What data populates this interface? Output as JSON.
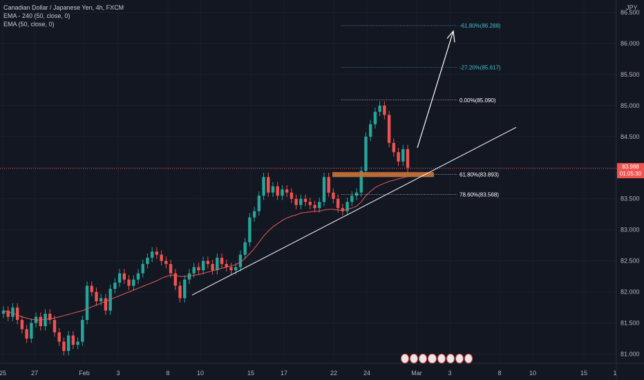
{
  "title": "Canadian Dollar / Japanese Yen, 4h, FXCM",
  "indicators": [
    "EMA - 240 (50, close, 0)",
    "EMA (50, close, 0)"
  ],
  "axis_unit": "JPY",
  "current_price": "83.988",
  "countdown": "01:05:30",
  "colors": {
    "background": "#131722",
    "up": "#26a69a",
    "down": "#ef5350",
    "ema": "#e35b5b",
    "trendline": "#ffffff",
    "fib_neutral": "#ffffff",
    "fib_extension": "#3fc1c9",
    "zone": "#c8733a"
  },
  "chart_data": {
    "type": "candlestick",
    "y_ticks": [
      "81.000",
      "81.500",
      "82.000",
      "82.500",
      "83.000",
      "83.500",
      "84.000",
      "84.500",
      "85.000",
      "85.500",
      "86.000",
      "86.500"
    ],
    "ylim": [
      80.85,
      86.7
    ],
    "x_ticks": [
      "25",
      "27",
      "Feb",
      "3",
      "8",
      "10",
      "15",
      "17",
      "22",
      "24",
      "Mar",
      "3",
      "8",
      "10",
      "15",
      "1"
    ],
    "close_series": [
      81.7,
      81.6,
      81.75,
      81.55,
      81.4,
      81.25,
      81.5,
      81.6,
      81.45,
      81.65,
      81.55,
      81.35,
      81.2,
      81.05,
      81.3,
      81.15,
      81.2,
      81.55,
      82.1,
      82.0,
      81.85,
      81.9,
      81.7,
      82.05,
      82.15,
      82.3,
      82.2,
      82.1,
      82.2,
      82.3,
      82.45,
      82.55,
      82.65,
      82.6,
      82.5,
      82.45,
      82.3,
      82.1,
      81.9,
      82.2,
      82.3,
      82.4,
      82.35,
      82.5,
      82.45,
      82.35,
      82.55,
      82.45,
      82.4,
      82.35,
      82.4,
      82.6,
      82.8,
      83.2,
      83.3,
      83.55,
      83.85,
      83.6,
      83.7,
      83.55,
      83.65,
      83.6,
      83.5,
      83.4,
      83.5,
      83.45,
      83.4,
      83.35,
      83.45,
      83.85,
      83.6,
      83.5,
      83.35,
      83.3,
      83.45,
      83.55,
      83.6,
      83.95,
      84.5,
      84.7,
      84.9,
      85.0,
      84.85,
      84.4,
      84.25,
      84.1,
      84.3,
      84.0
    ],
    "ema_series": [
      81.7,
      81.68,
      81.66,
      81.63,
      81.6,
      81.58,
      81.56,
      81.55,
      81.55,
      81.56,
      81.57,
      81.58,
      81.6,
      81.62,
      81.64,
      81.66,
      81.68,
      81.7,
      81.73,
      81.76,
      81.79,
      81.82,
      81.85,
      81.88,
      81.91,
      81.94,
      81.97,
      82.0,
      82.03,
      82.06,
      82.09,
      82.12,
      82.15,
      82.18,
      82.22,
      82.25,
      82.27,
      82.27,
      82.25,
      82.25,
      82.26,
      82.27,
      82.28,
      82.3,
      82.32,
      82.34,
      82.36,
      82.38,
      82.4,
      82.42,
      82.44,
      82.48,
      82.54,
      82.62,
      82.7,
      82.8,
      82.9,
      82.98,
      83.05,
      83.1,
      83.15,
      83.19,
      83.22,
      83.24,
      83.27,
      83.28,
      83.29,
      83.3,
      83.3,
      83.32,
      83.33,
      83.33,
      83.32,
      83.31,
      83.33,
      83.35,
      83.38,
      83.45,
      83.55,
      83.62,
      83.68,
      83.72,
      83.75,
      83.78,
      83.8,
      83.82,
      83.84,
      83.86
    ],
    "fib_levels": [
      {
        "label": "-61.80%(86.288)",
        "value": 86.288
      },
      {
        "label": "-27.20%(85.617)",
        "value": 85.617
      },
      {
        "label": "0.00%(85.090)",
        "value": 85.09
      },
      {
        "label": "61.80%(83.893)",
        "value": 83.893
      },
      {
        "label": "78.60%(83.568)",
        "value": 83.568
      }
    ],
    "current_price_line": 83.988
  }
}
